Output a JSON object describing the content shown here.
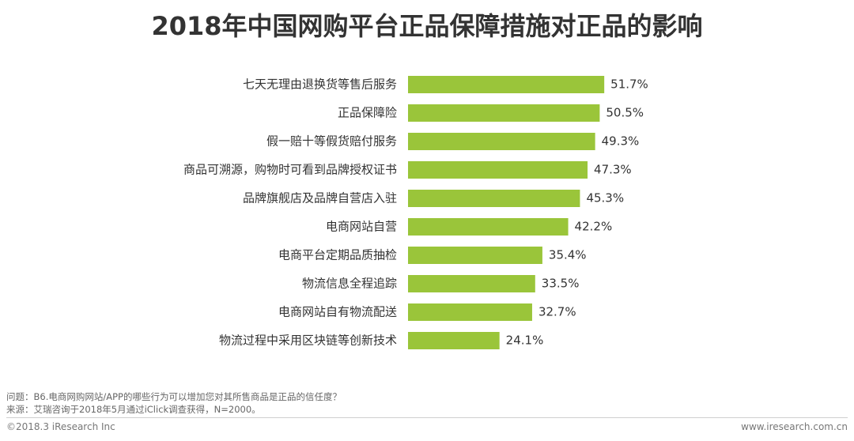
{
  "title": "2018年中国网购平台正品保障措施对正品的影响",
  "chart_data": {
    "type": "bar",
    "orientation": "horizontal",
    "categories": [
      "七天无理由退换货等售后服务",
      "正品保障险",
      "假一赔十等假货赔付服务",
      "商品可溯源，购物时可看到品牌授权证书",
      "品牌旗舰店及品牌自营店入驻",
      "电商网站自营",
      "电商平台定期品质抽检",
      "物流信息全程追踪",
      "电商网站自有物流配送",
      "物流过程中采用区块链等创新技术"
    ],
    "values": [
      51.7,
      50.5,
      49.3,
      47.3,
      45.3,
      42.2,
      35.4,
      33.5,
      32.7,
      24.1
    ],
    "value_labels": [
      "51.7%",
      "50.5%",
      "49.3%",
      "47.3%",
      "45.3%",
      "42.2%",
      "35.4%",
      "33.5%",
      "32.7%",
      "24.1%"
    ],
    "xlim": [
      0,
      60
    ],
    "grid": false,
    "bar_color": "#9ac53a"
  },
  "notes": {
    "question": "问题：B6.电商网购网站/APP的哪些行为可以增加您对其所售商品是正品的信任度？",
    "source": "来源：艾瑞咨询于2018年5月通过iClick调查获得，N=2000。"
  },
  "footer": {
    "copyright": "©2018.3 iResearch Inc",
    "website": "www.iresearch.com.cn"
  }
}
